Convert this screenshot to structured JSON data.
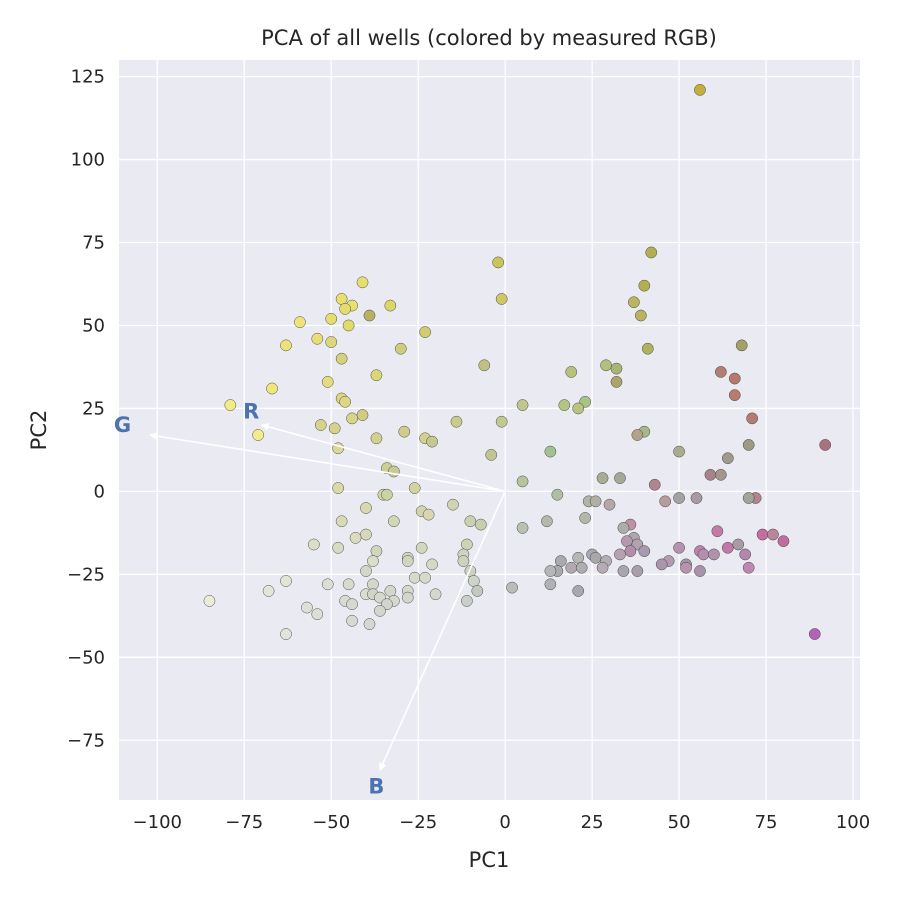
{
  "chart_data": {
    "type": "scatter",
    "title": "PCA of all wells (colored by measured RGB)",
    "xlabel": "PC1",
    "ylabel": "PC2",
    "xlim": [
      -111,
      102
    ],
    "ylim": [
      -93,
      130
    ],
    "grid": true,
    "xticks": [
      -100,
      -75,
      -50,
      -25,
      0,
      25,
      50,
      75,
      100
    ],
    "yticks": [
      -75,
      -50,
      -25,
      0,
      25,
      50,
      75,
      100,
      125
    ],
    "xtick_labels": [
      "−100",
      "−75",
      "−50",
      "−25",
      "0",
      "25",
      "50",
      "75",
      "100"
    ],
    "ytick_labels": [
      "−75",
      "−50",
      "−25",
      "0",
      "25",
      "50",
      "75",
      "100",
      "125"
    ],
    "loadings": [
      {
        "label": "R",
        "x": -70,
        "y": 20,
        "label_x": -73,
        "label_y": 24
      },
      {
        "label": "G",
        "x": -102,
        "y": 17,
        "label_x": -110,
        "label_y": 20
      },
      {
        "label": "B",
        "x": -36,
        "y": -84,
        "label_x": -37,
        "label_y": -89
      }
    ],
    "points": [
      {
        "x": 56,
        "y": 121,
        "color": "#c4ae3c"
      },
      {
        "x": 42,
        "y": 72,
        "color": "#b3ad55"
      },
      {
        "x": -2,
        "y": 69,
        "color": "#c9c55c"
      },
      {
        "x": -41,
        "y": 63,
        "color": "#e6de6e"
      },
      {
        "x": 40,
        "y": 62,
        "color": "#b2b050"
      },
      {
        "x": -47,
        "y": 58,
        "color": "#e8df6e"
      },
      {
        "x": -1,
        "y": 58,
        "color": "#cdc766"
      },
      {
        "x": 37,
        "y": 57,
        "color": "#bab55e"
      },
      {
        "x": -44,
        "y": 56,
        "color": "#e6e070"
      },
      {
        "x": -33,
        "y": 56,
        "color": "#dcd667"
      },
      {
        "x": -46,
        "y": 55,
        "color": "#e4dc6d"
      },
      {
        "x": -39,
        "y": 53,
        "color": "#b7b065"
      },
      {
        "x": 39,
        "y": 53,
        "color": "#b9b360"
      },
      {
        "x": -50,
        "y": 52,
        "color": "#e6dd72"
      },
      {
        "x": -59,
        "y": 51,
        "color": "#eee478"
      },
      {
        "x": -45,
        "y": 50,
        "color": "#e2db6a"
      },
      {
        "x": -23,
        "y": 48,
        "color": "#d0cc70"
      },
      {
        "x": -54,
        "y": 46,
        "color": "#e8de79"
      },
      {
        "x": -50,
        "y": 45,
        "color": "#dcd778"
      },
      {
        "x": -63,
        "y": 44,
        "color": "#ece27b"
      },
      {
        "x": 68,
        "y": 44,
        "color": "#a3a06a"
      },
      {
        "x": 41,
        "y": 43,
        "color": "#aeb25f"
      },
      {
        "x": -30,
        "y": 43,
        "color": "#cfcc7d"
      },
      {
        "x": -47,
        "y": 40,
        "color": "#d5d079"
      },
      {
        "x": -6,
        "y": 38,
        "color": "#c1c083"
      },
      {
        "x": 29,
        "y": 38,
        "color": "#b2c07a"
      },
      {
        "x": 32,
        "y": 37,
        "color": "#a6b771"
      },
      {
        "x": -37,
        "y": 35,
        "color": "#dbd677"
      },
      {
        "x": 19,
        "y": 36,
        "color": "#b7c07d"
      },
      {
        "x": 62,
        "y": 36,
        "color": "#b47c72"
      },
      {
        "x": -51,
        "y": 33,
        "color": "#e5dc7e"
      },
      {
        "x": 32,
        "y": 33,
        "color": "#ada36d"
      },
      {
        "x": 66,
        "y": 34,
        "color": "#b67a6c"
      },
      {
        "x": -67,
        "y": 31,
        "color": "#f0e67c"
      },
      {
        "x": 66,
        "y": 29,
        "color": "#b97a70"
      },
      {
        "x": -47,
        "y": 28,
        "color": "#dcd683"
      },
      {
        "x": -46,
        "y": 27,
        "color": "#ddd784"
      },
      {
        "x": -79,
        "y": 26,
        "color": "#f3eb84"
      },
      {
        "x": 23,
        "y": 27,
        "color": "#a9c382"
      },
      {
        "x": 5,
        "y": 26,
        "color": "#c1c58e"
      },
      {
        "x": 17,
        "y": 26,
        "color": "#b3c483"
      },
      {
        "x": 21,
        "y": 25,
        "color": "#b8c281"
      },
      {
        "x": -41,
        "y": 23,
        "color": "#d0cd83"
      },
      {
        "x": -44,
        "y": 22,
        "color": "#d8d58a"
      },
      {
        "x": 71,
        "y": 22,
        "color": "#b47b74"
      },
      {
        "x": -14,
        "y": 21,
        "color": "#c9cb8d"
      },
      {
        "x": -1,
        "y": 21,
        "color": "#c2c892"
      },
      {
        "x": -53,
        "y": 20,
        "color": "#d6d28e"
      },
      {
        "x": -49,
        "y": 19,
        "color": "#d5d28c"
      },
      {
        "x": -29,
        "y": 18,
        "color": "#cfcc8c"
      },
      {
        "x": 40,
        "y": 18,
        "color": "#a7b78a"
      },
      {
        "x": -71,
        "y": 17,
        "color": "#f3ec8d"
      },
      {
        "x": 38,
        "y": 17,
        "color": "#b3a28a"
      },
      {
        "x": -23,
        "y": 16,
        "color": "#d3d191"
      },
      {
        "x": -37,
        "y": 16,
        "color": "#d2d18e"
      },
      {
        "x": -21,
        "y": 15,
        "color": "#c7c88d"
      },
      {
        "x": 70,
        "y": 14,
        "color": "#9b9a84"
      },
      {
        "x": 92,
        "y": 14,
        "color": "#a87381"
      },
      {
        "x": -48,
        "y": 13,
        "color": "#dbd99a"
      },
      {
        "x": 13,
        "y": 12,
        "color": "#9fc28f"
      },
      {
        "x": 50,
        "y": 12,
        "color": "#a9ab93"
      },
      {
        "x": -4,
        "y": 11,
        "color": "#c1c592"
      },
      {
        "x": 64,
        "y": 10,
        "color": "#a09a8c"
      },
      {
        "x": -34,
        "y": 7,
        "color": "#cccf92"
      },
      {
        "x": -32,
        "y": 6,
        "color": "#c7ca94"
      },
      {
        "x": 59,
        "y": 5,
        "color": "#a6838b"
      },
      {
        "x": 62,
        "y": 5,
        "color": "#a4968c"
      },
      {
        "x": 28,
        "y": 4,
        "color": "#a9ab95"
      },
      {
        "x": 33,
        "y": 4,
        "color": "#a6a896"
      },
      {
        "x": 5,
        "y": 3,
        "color": "#b5c49d"
      },
      {
        "x": 43,
        "y": 2,
        "color": "#b08590"
      },
      {
        "x": -26,
        "y": 1,
        "color": "#d3d3a0"
      },
      {
        "x": -48,
        "y": 1,
        "color": "#d9daa6"
      },
      {
        "x": -35,
        "y": -1,
        "color": "#d2d4a4"
      },
      {
        "x": -34,
        "y": -1,
        "color": "#cdd2a3"
      },
      {
        "x": 15,
        "y": -1,
        "color": "#b0bfa2"
      },
      {
        "x": 72,
        "y": -2,
        "color": "#b3858a"
      },
      {
        "x": 50,
        "y": -2,
        "color": "#a5a2a2"
      },
      {
        "x": 55,
        "y": -2,
        "color": "#a89ba1"
      },
      {
        "x": 70,
        "y": -2,
        "color": "#a3a39c"
      },
      {
        "x": 46,
        "y": -3,
        "color": "#b79c9f"
      },
      {
        "x": 24,
        "y": -3,
        "color": "#b0b5a5"
      },
      {
        "x": 26,
        "y": -3,
        "color": "#b1afa4"
      },
      {
        "x": 30,
        "y": -4,
        "color": "#b7a6a7"
      },
      {
        "x": -15,
        "y": -4,
        "color": "#cfd3ae"
      },
      {
        "x": -24,
        "y": -6,
        "color": "#d2d4ae"
      },
      {
        "x": -22,
        "y": -7,
        "color": "#d7d6b0"
      },
      {
        "x": -40,
        "y": -5,
        "color": "#d6d8ae"
      },
      {
        "x": 23,
        "y": -8,
        "color": "#b2b8a8"
      },
      {
        "x": -10,
        "y": -9,
        "color": "#cbd1b0"
      },
      {
        "x": -7,
        "y": -10,
        "color": "#c7ceae"
      },
      {
        "x": 12,
        "y": -9,
        "color": "#b3b8ab"
      },
      {
        "x": -32,
        "y": -9,
        "color": "#d2d7b3"
      },
      {
        "x": -47,
        "y": -9,
        "color": "#d8dab6"
      },
      {
        "x": 36,
        "y": -10,
        "color": "#c090a6"
      },
      {
        "x": 34,
        "y": -11,
        "color": "#adadac"
      },
      {
        "x": 5,
        "y": -11,
        "color": "#b9c2b1"
      },
      {
        "x": 61,
        "y": -12,
        "color": "#c17ba6"
      },
      {
        "x": -40,
        "y": -13,
        "color": "#d6d8b8"
      },
      {
        "x": 74,
        "y": -13,
        "color": "#c56d9e"
      },
      {
        "x": 77,
        "y": -13,
        "color": "#b6879b"
      },
      {
        "x": 80,
        "y": -15,
        "color": "#c16b9e"
      },
      {
        "x": 37,
        "y": -14,
        "color": "#aca7af"
      },
      {
        "x": -43,
        "y": -14,
        "color": "#dadcc0"
      },
      {
        "x": 35,
        "y": -15,
        "color": "#b29aac"
      },
      {
        "x": 38,
        "y": -16,
        "color": "#b3a0b0"
      },
      {
        "x": 67,
        "y": -16,
        "color": "#a89ba6"
      },
      {
        "x": 64,
        "y": -17,
        "color": "#c178a8"
      },
      {
        "x": -11,
        "y": -16,
        "color": "#ccd3b6"
      },
      {
        "x": -24,
        "y": -17,
        "color": "#d3d7bd"
      },
      {
        "x": -55,
        "y": -16,
        "color": "#dcdec8"
      },
      {
        "x": -48,
        "y": -17,
        "color": "#d7dbc3"
      },
      {
        "x": 50,
        "y": -17,
        "color": "#b393ad"
      },
      {
        "x": -37,
        "y": -18,
        "color": "#d0d6be"
      },
      {
        "x": 36,
        "y": -18,
        "color": "#b28eac"
      },
      {
        "x": 40,
        "y": -18,
        "color": "#a89aae"
      },
      {
        "x": 56,
        "y": -18,
        "color": "#bc83a8"
      },
      {
        "x": 57,
        "y": -19,
        "color": "#b58dae"
      },
      {
        "x": 60,
        "y": -19,
        "color": "#b192ac"
      },
      {
        "x": 69,
        "y": -19,
        "color": "#b387ab"
      },
      {
        "x": 33,
        "y": -19,
        "color": "#b4a1b1"
      },
      {
        "x": 25,
        "y": -19,
        "color": "#a9a8b0"
      },
      {
        "x": -12,
        "y": -19,
        "color": "#cdd4bf"
      },
      {
        "x": 26,
        "y": -20,
        "color": "#a8a8ab"
      },
      {
        "x": -28,
        "y": -20,
        "color": "#d2d6c0"
      },
      {
        "x": 21,
        "y": -20,
        "color": "#b5b7b3"
      },
      {
        "x": 47,
        "y": -21,
        "color": "#b09bb0"
      },
      {
        "x": 29,
        "y": -21,
        "color": "#b2acb4"
      },
      {
        "x": -28,
        "y": -21,
        "color": "#d0d5c2"
      },
      {
        "x": -12,
        "y": -21,
        "color": "#cad3bf"
      },
      {
        "x": -38,
        "y": -21,
        "color": "#dadec8"
      },
      {
        "x": 16,
        "y": -21,
        "color": "#aba9ad"
      },
      {
        "x": 45,
        "y": -22,
        "color": "#a996ab"
      },
      {
        "x": -21,
        "y": -22,
        "color": "#d4d9c4"
      },
      {
        "x": 52,
        "y": -22,
        "color": "#a495a7"
      },
      {
        "x": 52,
        "y": -23,
        "color": "#b793ad"
      },
      {
        "x": 28,
        "y": -23,
        "color": "#b5abb6"
      },
      {
        "x": 19,
        "y": -23,
        "color": "#b1abb1"
      },
      {
        "x": 70,
        "y": -23,
        "color": "#bd86b3"
      },
      {
        "x": 15,
        "y": -24,
        "color": "#aaa9ac"
      },
      {
        "x": 22,
        "y": -23,
        "color": "#afadb4"
      },
      {
        "x": 34,
        "y": -24,
        "color": "#a8a5ae"
      },
      {
        "x": 38,
        "y": -24,
        "color": "#aa9ead"
      },
      {
        "x": 56,
        "y": -24,
        "color": "#a892ab"
      },
      {
        "x": -40,
        "y": -24,
        "color": "#d2d8c6"
      },
      {
        "x": 13,
        "y": -24,
        "color": "#b4b6b8"
      },
      {
        "x": -10,
        "y": -24,
        "color": "#ccd1c2"
      },
      {
        "x": -26,
        "y": -26,
        "color": "#d6dbc9"
      },
      {
        "x": -23,
        "y": -26,
        "color": "#d6dacb"
      },
      {
        "x": -9,
        "y": -27,
        "color": "#ced4c6"
      },
      {
        "x": -63,
        "y": -27,
        "color": "#e3e5d4"
      },
      {
        "x": -51,
        "y": -28,
        "color": "#dbded0"
      },
      {
        "x": -45,
        "y": -28,
        "color": "#d6dbcd"
      },
      {
        "x": -38,
        "y": -28,
        "color": "#d1d7c9"
      },
      {
        "x": 13,
        "y": -28,
        "color": "#b1b0b4"
      },
      {
        "x": 2,
        "y": -29,
        "color": "#babcbc"
      },
      {
        "x": -33,
        "y": -30,
        "color": "#d2d6cc"
      },
      {
        "x": -28,
        "y": -30,
        "color": "#d5d9cd"
      },
      {
        "x": -8,
        "y": -30,
        "color": "#c3c9c0"
      },
      {
        "x": 21,
        "y": -30,
        "color": "#a9a7ad"
      },
      {
        "x": -68,
        "y": -30,
        "color": "#e3e6d6"
      },
      {
        "x": -40,
        "y": -31,
        "color": "#d9ddd0"
      },
      {
        "x": -38,
        "y": -31,
        "color": "#d0d4c9"
      },
      {
        "x": -20,
        "y": -31,
        "color": "#d3d8ce"
      },
      {
        "x": -28,
        "y": -32,
        "color": "#d2d6cd"
      },
      {
        "x": -36,
        "y": -32,
        "color": "#d4d8cd"
      },
      {
        "x": -46,
        "y": -33,
        "color": "#d7dccf"
      },
      {
        "x": -32,
        "y": -33,
        "color": "#d4d8cf"
      },
      {
        "x": -11,
        "y": -33,
        "color": "#c9cec7"
      },
      {
        "x": -85,
        "y": -33,
        "color": "#ececd8"
      },
      {
        "x": -34,
        "y": -34,
        "color": "#d1d5cd"
      },
      {
        "x": -44,
        "y": -34,
        "color": "#d4d9d0"
      },
      {
        "x": -57,
        "y": -35,
        "color": "#dde0d7"
      },
      {
        "x": -36,
        "y": -36,
        "color": "#d2d6cf"
      },
      {
        "x": -54,
        "y": -37,
        "color": "#dbdfd5"
      },
      {
        "x": -44,
        "y": -39,
        "color": "#d5dad3"
      },
      {
        "x": -39,
        "y": -40,
        "color": "#d4d8d2"
      },
      {
        "x": -63,
        "y": -43,
        "color": "#e1e4dc"
      },
      {
        "x": 89,
        "y": -43,
        "color": "#b363b6"
      }
    ]
  }
}
